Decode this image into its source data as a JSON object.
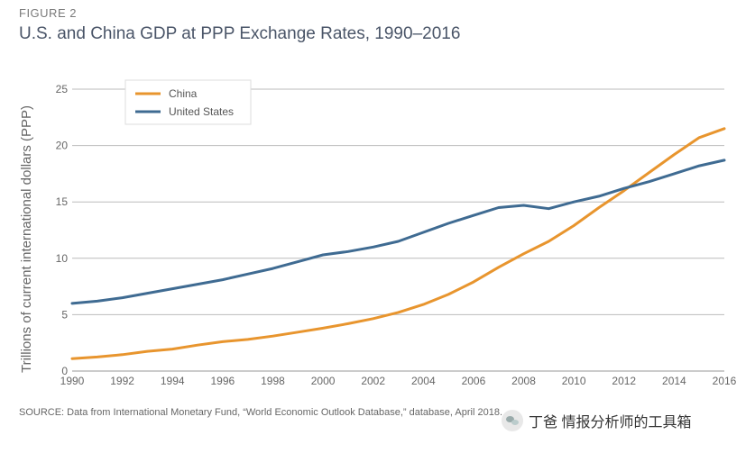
{
  "figure_label": "FIGURE 2",
  "source": "SOURCE: Data from International Monetary Fund, “World Economic Outlook Database,” database, April 2018.",
  "watermark": "丁爸 情报分析师的工具箱",
  "chart_data": {
    "type": "line",
    "title": "U.S. and China GDP at PPP Exchange Rates, 1990–2016",
    "xlabel": "",
    "ylabel": "Trillions of current international dollars (PPP)",
    "xlim": [
      1990,
      2016
    ],
    "ylim": [
      0,
      25
    ],
    "x_ticks": [
      "1990",
      "1992",
      "1994",
      "1996",
      "1998",
      "2000",
      "2002",
      "2004",
      "2006",
      "2008",
      "2010",
      "2012",
      "2014",
      "2016"
    ],
    "y_ticks": [
      "0",
      "5",
      "10",
      "15",
      "20",
      "25"
    ],
    "grid": "horizontal",
    "legend_position": "top-left",
    "x": [
      1990,
      1991,
      1992,
      1993,
      1994,
      1995,
      1996,
      1997,
      1998,
      1999,
      2000,
      2001,
      2002,
      2003,
      2004,
      2005,
      2006,
      2007,
      2008,
      2009,
      2010,
      2011,
      2012,
      2013,
      2014,
      2015,
      2016
    ],
    "series": [
      {
        "name": "China",
        "color": "#e8952e",
        "values": [
          1.1,
          1.25,
          1.45,
          1.75,
          1.95,
          2.3,
          2.6,
          2.8,
          3.1,
          3.45,
          3.8,
          4.2,
          4.65,
          5.2,
          5.9,
          6.8,
          7.9,
          9.2,
          10.4,
          11.5,
          12.9,
          14.5,
          16.0,
          17.6,
          19.2,
          20.7,
          21.5
        ]
      },
      {
        "name": "United States",
        "color": "#3f6b92",
        "values": [
          6.0,
          6.2,
          6.5,
          6.9,
          7.3,
          7.7,
          8.1,
          8.6,
          9.1,
          9.7,
          10.3,
          10.6,
          11.0,
          11.5,
          12.3,
          13.1,
          13.8,
          14.5,
          14.7,
          14.4,
          15.0,
          15.5,
          16.2,
          16.8,
          17.5,
          18.2,
          18.7
        ]
      }
    ]
  }
}
